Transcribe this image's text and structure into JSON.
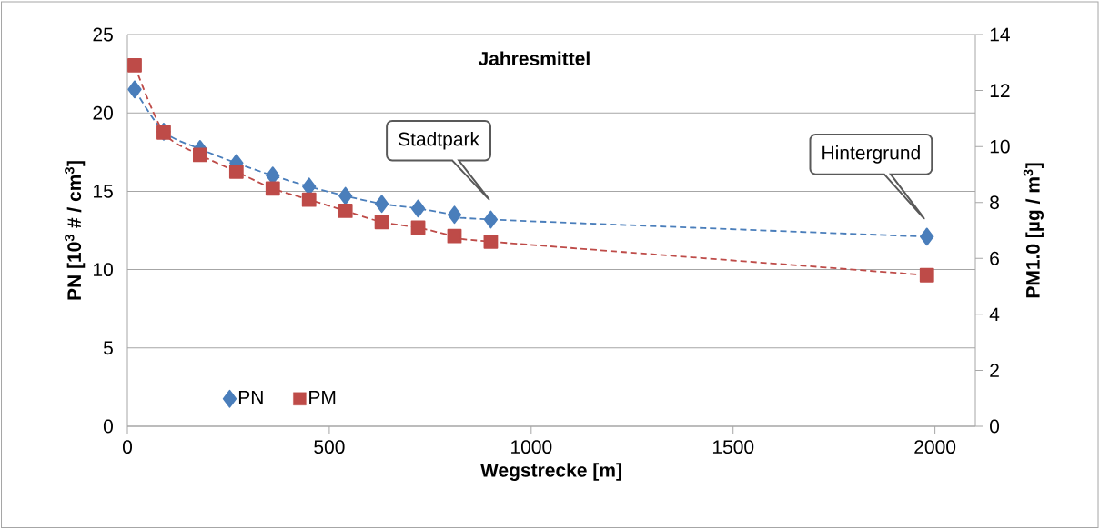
{
  "chart_data": {
    "type": "line",
    "title": "Jahresmittel",
    "xlabel": "Wegstrecke [m]",
    "ylabel": "PN  [10$^{3}$ # / cm$^{3}$]",
    "y2label": "PM1.0 [µg / m$^{3}$]",
    "annotations": [
      "Stadtpark",
      "Hintergrund"
    ],
    "series": [
      {
        "name": "PN",
        "color": "#4a7ebb",
        "marker": "diamond",
        "line_style": "dashed",
        "x": [
          18,
          90,
          180,
          270,
          360,
          450,
          540,
          630,
          720,
          810,
          900,
          1980
        ],
        "values": [
          21.5,
          18.8,
          17.7,
          16.8,
          16.0,
          15.3,
          14.7,
          14.2,
          13.9,
          13.5,
          13.2,
          12.1
        ]
      },
      {
        "name": "PM",
        "color": "#be4b48",
        "marker": "square",
        "line_style": "dashed",
        "axis": "y2",
        "x": [
          18,
          90,
          180,
          270,
          360,
          450,
          540,
          630,
          720,
          810,
          900,
          1980
        ],
        "values": [
          12.9,
          10.5,
          9.7,
          9.1,
          8.5,
          8.1,
          7.7,
          7.3,
          7.1,
          6.8,
          6.6,
          5.4
        ]
      }
    ],
    "xlim": [
      0,
      2100
    ],
    "xticks": [
      0,
      500,
      1000,
      1500,
      2000
    ],
    "ylim": [
      0,
      25
    ],
    "yticks": [
      0,
      5,
      10,
      15,
      20,
      25
    ],
    "y2lim": [
      0,
      14
    ],
    "y2ticks": [
      0,
      2,
      4,
      6,
      8,
      10,
      12,
      14
    ],
    "grid": "y",
    "legend": "bottom left"
  }
}
